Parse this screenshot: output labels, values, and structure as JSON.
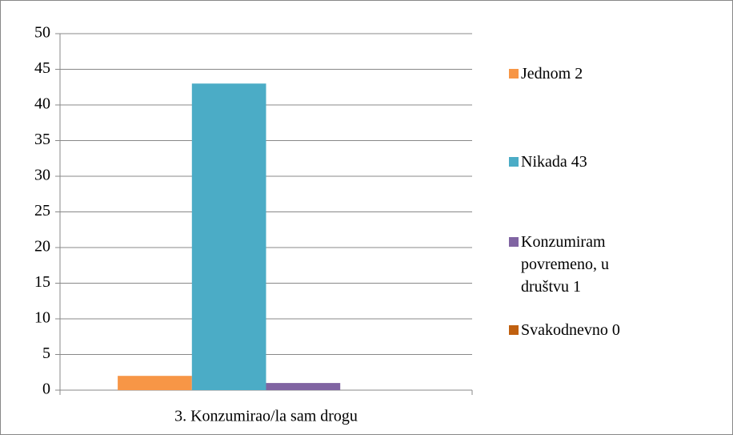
{
  "chart_data": {
    "type": "bar",
    "categories": [
      "3. Konzumirao/la sam drogu"
    ],
    "series": [
      {
        "name": "Jednom  2",
        "color": "#f79646",
        "values": [
          2
        ]
      },
      {
        "name": "Nikada  43",
        "color": "#4bacc6",
        "values": [
          43
        ]
      },
      {
        "name": "Konzumiram povremeno, u društvu 1",
        "color": "#8064a2",
        "values": [
          1
        ]
      },
      {
        "name": "Svakodnevno  0",
        "color": "#c0600f",
        "values": [
          0
        ]
      }
    ],
    "ylim": [
      0,
      50
    ],
    "yticks": [
      0,
      5,
      10,
      15,
      20,
      25,
      30,
      35,
      40,
      45,
      50
    ],
    "grid": true,
    "legend": "right"
  }
}
